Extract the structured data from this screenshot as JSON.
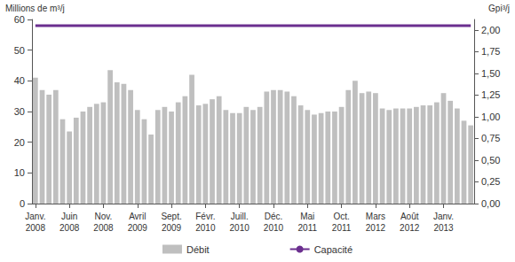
{
  "chart_data": {
    "type": "bar",
    "y_label": "Millions de m³/j",
    "y2_label": "Gpi³/j",
    "categories": [
      "Janv. 2008",
      null,
      null,
      null,
      null,
      "Juin 2008",
      null,
      null,
      null,
      null,
      "Nov. 2008",
      null,
      null,
      null,
      null,
      "Avril 2009",
      null,
      null,
      null,
      null,
      "Sept. 2009",
      null,
      null,
      null,
      null,
      "Févr. 2010",
      null,
      null,
      null,
      null,
      "Juill. 2010",
      null,
      null,
      null,
      null,
      "Déc. 2010",
      null,
      null,
      null,
      null,
      "Mai 2011",
      null,
      null,
      null,
      null,
      "Oct. 2011",
      null,
      null,
      null,
      null,
      "Mars 2012",
      null,
      null,
      null,
      null,
      "Août 2012",
      null,
      null,
      null,
      null,
      "Janv. 2013",
      null,
      null,
      null,
      null
    ],
    "series": [
      {
        "name": "Débit",
        "type": "bar",
        "color": "#bfbfbf",
        "values": [
          41,
          37,
          35.5,
          37,
          27.5,
          23.5,
          28,
          30,
          31.5,
          32.5,
          33,
          43.5,
          39.5,
          39,
          37,
          30.5,
          27.5,
          22.5,
          30.5,
          31.5,
          30,
          33,
          35,
          42,
          32,
          32.5,
          34,
          35,
          30.5,
          29.5,
          29.5,
          31.5,
          30.5,
          31.5,
          36.5,
          37,
          37,
          36.5,
          35,
          32,
          30.5,
          29,
          29.5,
          30,
          30,
          31.5,
          37,
          40,
          36,
          36.5,
          36,
          31,
          30.5,
          31,
          31,
          31,
          31.5,
          32,
          32,
          33,
          36,
          33.5,
          31,
          27,
          25.5
        ]
      },
      {
        "name": "Capacité",
        "type": "line",
        "color": "#6b2f8f",
        "values": [
          58,
          58,
          58,
          58,
          58,
          58,
          58,
          58,
          58,
          58,
          58,
          58,
          58,
          58,
          58,
          58,
          58,
          58,
          58,
          58,
          58,
          58,
          58,
          58,
          58,
          58,
          58,
          58,
          58,
          58,
          58,
          58,
          58,
          58,
          58,
          58,
          58,
          58,
          58,
          58,
          58,
          58,
          58,
          58,
          58,
          58,
          58,
          58,
          58,
          58,
          58,
          58,
          58,
          58,
          58,
          58,
          58,
          58,
          58,
          58,
          58,
          58,
          58,
          58,
          58
        ]
      }
    ],
    "ylim": [
      0,
      60
    ],
    "yticks": [
      0,
      10,
      20,
      30,
      40,
      50,
      60
    ],
    "y2lim": [
      0,
      2.12
    ],
    "y2ticks": [
      {
        "value": 0,
        "label": "0,00"
      },
      {
        "value": 0.25,
        "label": "0,25"
      },
      {
        "value": 0.5,
        "label": "0,50"
      },
      {
        "value": 0.75,
        "label": "0,75"
      },
      {
        "value": 1,
        "label": "1,00"
      },
      {
        "value": 1.25,
        "label": "1,25"
      },
      {
        "value": 1.5,
        "label": "1,50"
      },
      {
        "value": 1.75,
        "label": "1,75"
      },
      {
        "value": 2,
        "label": "2,00"
      }
    ],
    "grid": false,
    "legend": "bottom"
  }
}
